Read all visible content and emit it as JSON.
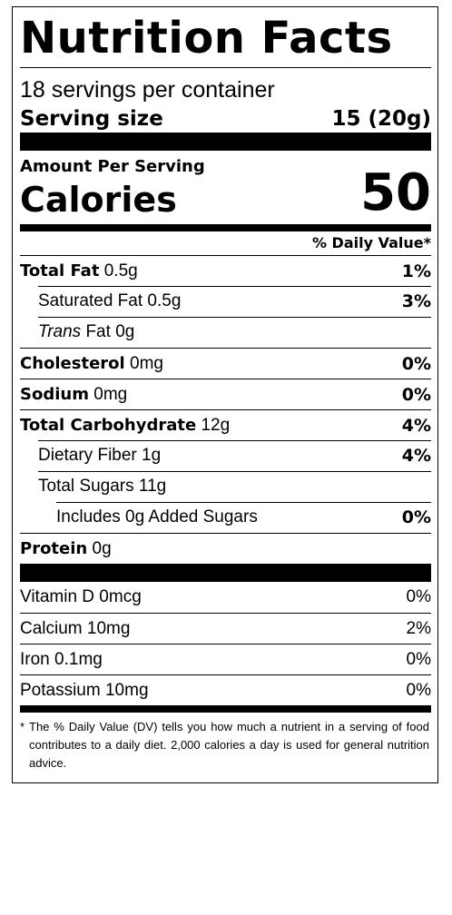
{
  "title": "Nutrition Facts",
  "servings": "18 servings per container",
  "serving_size": {
    "label": "Serving size",
    "value": "15 (20g)"
  },
  "amount_per_serving": "Amount Per Serving",
  "calories": {
    "label": "Calories",
    "value": "50"
  },
  "daily_value_header": "% Daily Value*",
  "nutrients": [
    {
      "name": "Total Fat",
      "amount": "0.5g",
      "dv": "1%"
    },
    {
      "name": "Saturated Fat",
      "amount": "0.5g",
      "dv": "3%"
    },
    {
      "name_italic": "Trans",
      "name_rest": "Fat",
      "amount": "0g",
      "dv": ""
    },
    {
      "name": "Cholesterol",
      "amount": "0mg",
      "dv": "0%"
    },
    {
      "name": "Sodium",
      "amount": "0mg",
      "dv": "0%"
    },
    {
      "name": "Total Carbohydrate",
      "amount": "12g",
      "dv": "4%"
    },
    {
      "name": "Dietary Fiber",
      "amount": "1g",
      "dv": "4%"
    },
    {
      "name": "Total Sugars",
      "amount": "11g",
      "dv": ""
    },
    {
      "name": "Includes 0g Added Sugars",
      "dv": "0%"
    },
    {
      "name": "Protein",
      "amount": "0g",
      "dv": ""
    }
  ],
  "vitamins": [
    {
      "name": "Vitamin D",
      "amount": "0mcg",
      "dv": "0%"
    },
    {
      "name": "Calcium",
      "amount": "10mg",
      "dv": "2%"
    },
    {
      "name": "Iron",
      "amount": "0.1mg",
      "dv": "0%"
    },
    {
      "name": "Potassium",
      "amount": "10mg",
      "dv": "0%"
    }
  ],
  "footnote": {
    "asterisk": "*",
    "text": "The % Daily Value (DV) tells you how much a nutrient in a serving of food contributes to a daily diet. 2,000 calories a day is used for general nutrition advice."
  }
}
